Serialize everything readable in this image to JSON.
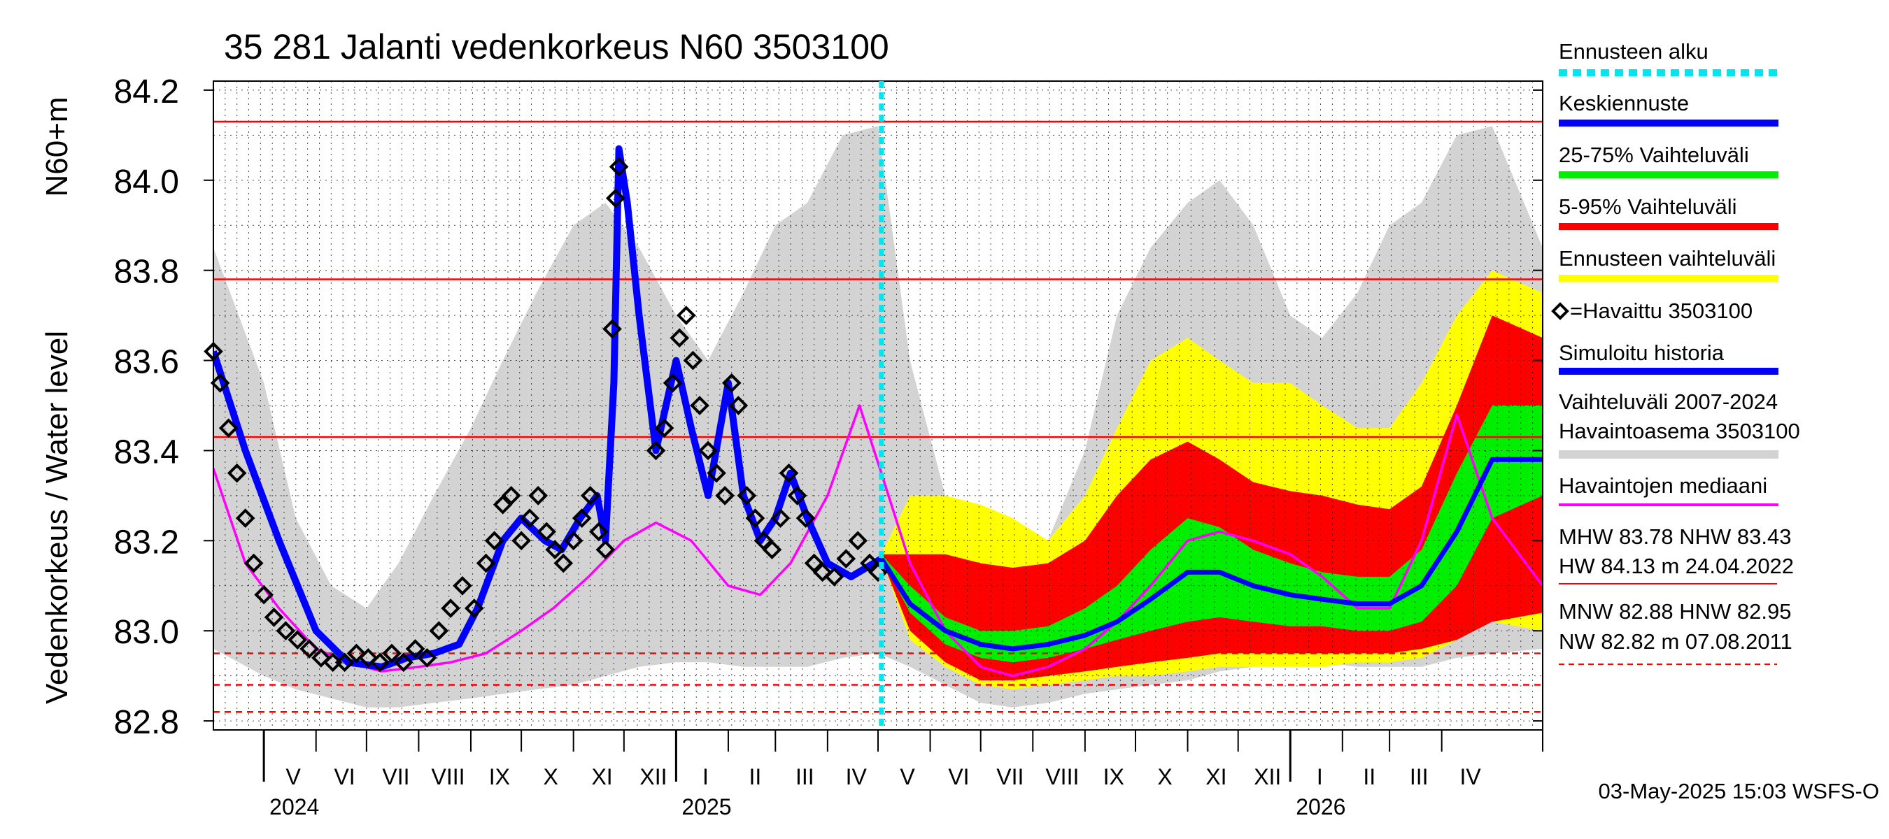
{
  "chart_data": {
    "type": "line",
    "title": "35 281 Jalanti vedenkorkeus N60 3503100",
    "ylabel_main": "Vedenkorkeus / Water level",
    "ylabel_unit": "N60+m",
    "ylim": [
      82.78,
      84.22
    ],
    "yticks": [
      "82.8",
      "83.0",
      "83.2",
      "83.4",
      "83.6",
      "83.8",
      "84.0",
      "84.2"
    ],
    "yticks_values": [
      82.8,
      83.0,
      83.2,
      83.4,
      83.6,
      83.8,
      84.0,
      84.2
    ],
    "x_range": [
      "2024-04-01",
      "2026-05-31"
    ],
    "forecast_start": "2025-05-03",
    "months": [
      {
        "label": "V",
        "start": "2024-05-01",
        "end": "2024-05-31"
      },
      {
        "label": "VI",
        "start": "2024-06-01",
        "end": "2024-06-30"
      },
      {
        "label": "VII",
        "start": "2024-07-01",
        "end": "2024-07-31"
      },
      {
        "label": "VIII",
        "start": "2024-08-01",
        "end": "2024-08-31"
      },
      {
        "label": "IX",
        "start": "2024-09-01",
        "end": "2024-09-30"
      },
      {
        "label": "X",
        "start": "2024-10-01",
        "end": "2024-10-31"
      },
      {
        "label": "XI",
        "start": "2024-11-01",
        "end": "2024-11-30"
      },
      {
        "label": "XII",
        "start": "2024-12-01",
        "end": "2024-12-31"
      },
      {
        "label": "I",
        "start": "2025-01-01",
        "end": "2025-01-31"
      },
      {
        "label": "II",
        "start": "2025-02-01",
        "end": "2025-02-28"
      },
      {
        "label": "III",
        "start": "2025-03-01",
        "end": "2025-03-31"
      },
      {
        "label": "IV",
        "start": "2025-04-01",
        "end": "2025-04-30"
      },
      {
        "label": "V",
        "start": "2025-05-01",
        "end": "2025-05-31"
      },
      {
        "label": "VI",
        "start": "2025-06-01",
        "end": "2025-06-30"
      },
      {
        "label": "VII",
        "start": "2025-07-01",
        "end": "2025-07-31"
      },
      {
        "label": "VIII",
        "start": "2025-08-01",
        "end": "2025-08-31"
      },
      {
        "label": "IX",
        "start": "2025-09-01",
        "end": "2025-09-30"
      },
      {
        "label": "X",
        "start": "2025-10-01",
        "end": "2025-10-31"
      },
      {
        "label": "XI",
        "start": "2025-11-01",
        "end": "2025-11-30"
      },
      {
        "label": "XII",
        "start": "2025-12-01",
        "end": "2025-12-31"
      },
      {
        "label": "I",
        "start": "2026-01-01",
        "end": "2026-01-31"
      },
      {
        "label": "II",
        "start": "2026-02-01",
        "end": "2026-02-28"
      },
      {
        "label": "III",
        "start": "2026-03-01",
        "end": "2026-03-31"
      },
      {
        "label": "IV",
        "start": "2026-04-01",
        "end": "2026-04-30"
      }
    ],
    "years": [
      {
        "label": "2024",
        "date": "2024-05-01"
      },
      {
        "label": "2025",
        "date": "2025-01-01"
      },
      {
        "label": "2026",
        "date": "2026-01-01"
      }
    ],
    "reference_lines": [
      {
        "name": "HW",
        "value": 84.13,
        "style": "solid"
      },
      {
        "name": "MHW",
        "value": 83.78,
        "style": "solid"
      },
      {
        "name": "NHW",
        "value": 83.43,
        "style": "solid"
      },
      {
        "name": "HNW",
        "value": 82.95,
        "style": "dashed"
      },
      {
        "name": "MNW",
        "value": 82.88,
        "style": "dashed"
      },
      {
        "name": "NW",
        "value": 82.82,
        "style": "dashed"
      }
    ],
    "series": [
      {
        "name": "Vaihteluväli 2007-2024 Havaintoasema 3503100",
        "kind": "band",
        "color": "#d3d3d3",
        "x": [
          "2024-04-01",
          "2024-05-01",
          "2024-05-20",
          "2024-06-10",
          "2024-07-01",
          "2024-07-20",
          "2024-08-10",
          "2024-09-01",
          "2024-09-20",
          "2024-10-10",
          "2024-11-01",
          "2024-11-20",
          "2024-12-10",
          "2025-01-01",
          "2025-01-20",
          "2025-02-10",
          "2025-03-01",
          "2025-03-20",
          "2025-04-10",
          "2025-05-01",
          "2025-05-20",
          "2025-06-10",
          "2025-07-01",
          "2025-07-20",
          "2025-08-10",
          "2025-09-01",
          "2025-09-20",
          "2025-10-10",
          "2025-11-01",
          "2025-11-20",
          "2025-12-10",
          "2026-01-01",
          "2026-01-20",
          "2026-02-10",
          "2026-03-01",
          "2026-03-20",
          "2026-04-10",
          "2026-05-01",
          "2026-05-31"
        ],
        "low": [
          82.96,
          82.9,
          82.87,
          82.85,
          82.83,
          82.83,
          82.84,
          82.85,
          82.86,
          82.87,
          82.88,
          82.9,
          82.92,
          82.93,
          82.93,
          82.92,
          82.92,
          82.92,
          82.94,
          82.95,
          82.92,
          82.88,
          82.84,
          82.83,
          82.84,
          82.86,
          82.87,
          82.88,
          82.89,
          82.91,
          82.92,
          82.93,
          82.93,
          82.92,
          82.92,
          82.92,
          82.94,
          82.95,
          82.96
        ],
        "high": [
          83.85,
          83.55,
          83.25,
          83.1,
          83.05,
          83.15,
          83.3,
          83.45,
          83.6,
          83.75,
          83.9,
          83.95,
          83.85,
          83.7,
          83.6,
          83.75,
          83.9,
          83.95,
          84.1,
          84.12,
          83.6,
          83.3,
          83.1,
          83.08,
          83.2,
          83.4,
          83.7,
          83.85,
          83.95,
          84.0,
          83.9,
          83.7,
          83.65,
          83.75,
          83.9,
          83.95,
          84.1,
          84.12,
          83.85
        ]
      },
      {
        "name": "Ennusteen vaihteluväli",
        "kind": "band",
        "color": "#ffff00",
        "x": [
          "2025-05-03",
          "2025-05-20",
          "2025-06-10",
          "2025-07-01",
          "2025-07-20",
          "2025-08-10",
          "2025-09-01",
          "2025-09-20",
          "2025-10-10",
          "2025-11-01",
          "2025-11-20",
          "2025-12-10",
          "2026-01-01",
          "2026-01-20",
          "2026-02-10",
          "2026-03-01",
          "2026-03-20",
          "2026-04-10",
          "2026-05-01",
          "2026-05-31"
        ],
        "low": [
          83.16,
          82.98,
          82.92,
          82.88,
          82.87,
          82.88,
          82.89,
          82.9,
          82.9,
          82.91,
          82.92,
          82.92,
          82.92,
          82.92,
          82.93,
          82.93,
          82.94,
          82.98,
          83.02,
          83.0
        ],
        "high": [
          83.17,
          83.3,
          83.3,
          83.28,
          83.25,
          83.2,
          83.3,
          83.45,
          83.6,
          83.65,
          83.6,
          83.55,
          83.55,
          83.5,
          83.45,
          83.45,
          83.55,
          83.7,
          83.8,
          83.75
        ]
      },
      {
        "name": "5-95% Vaihteluväli",
        "kind": "band",
        "color": "#ff0000",
        "x": [
          "2025-05-03",
          "2025-05-20",
          "2025-06-10",
          "2025-07-01",
          "2025-07-20",
          "2025-08-10",
          "2025-09-01",
          "2025-09-20",
          "2025-10-10",
          "2025-11-01",
          "2025-11-20",
          "2025-12-10",
          "2026-01-01",
          "2026-01-20",
          "2026-02-10",
          "2026-03-01",
          "2026-03-20",
          "2026-04-10",
          "2026-05-01",
          "2026-05-31"
        ],
        "low": [
          83.16,
          83.0,
          82.93,
          82.89,
          82.89,
          82.9,
          82.91,
          82.92,
          82.93,
          82.94,
          82.95,
          82.95,
          82.95,
          82.95,
          82.95,
          82.95,
          82.96,
          82.98,
          83.02,
          83.04
        ],
        "high": [
          83.17,
          83.17,
          83.17,
          83.15,
          83.14,
          83.15,
          83.2,
          83.3,
          83.38,
          83.42,
          83.38,
          83.33,
          83.31,
          83.3,
          83.28,
          83.27,
          83.32,
          83.5,
          83.7,
          83.65
        ]
      },
      {
        "name": "25-75% Vaihteluväli",
        "kind": "band",
        "color": "#00ee00",
        "x": [
          "2025-05-03",
          "2025-05-20",
          "2025-06-10",
          "2025-07-01",
          "2025-07-20",
          "2025-08-10",
          "2025-09-01",
          "2025-09-20",
          "2025-10-10",
          "2025-11-01",
          "2025-11-20",
          "2025-12-10",
          "2026-01-01",
          "2026-01-20",
          "2026-02-10",
          "2026-03-01",
          "2026-03-20",
          "2026-04-10",
          "2026-05-01",
          "2026-05-31"
        ],
        "low": [
          83.16,
          83.04,
          82.97,
          82.94,
          82.93,
          82.94,
          82.96,
          82.98,
          83.0,
          83.02,
          83.03,
          83.02,
          83.01,
          83.01,
          83.0,
          83.0,
          83.02,
          83.1,
          83.25,
          83.3
        ],
        "high": [
          83.17,
          83.1,
          83.03,
          83.0,
          83.0,
          83.01,
          83.05,
          83.1,
          83.18,
          83.25,
          83.23,
          83.18,
          83.15,
          83.13,
          83.12,
          83.12,
          83.18,
          83.35,
          83.5,
          83.5
        ]
      },
      {
        "name": "Keskiennuste",
        "kind": "line",
        "color": "#0000ff",
        "x": [
          "2025-05-03",
          "2025-05-20",
          "2025-06-10",
          "2025-07-01",
          "2025-07-20",
          "2025-08-10",
          "2025-09-01",
          "2025-09-20",
          "2025-10-10",
          "2025-11-01",
          "2025-11-20",
          "2025-12-10",
          "2026-01-01",
          "2026-01-20",
          "2026-02-10",
          "2026-03-01",
          "2026-03-20",
          "2026-04-10",
          "2026-05-01",
          "2026-05-31"
        ],
        "y": [
          83.16,
          83.06,
          83.0,
          82.97,
          82.96,
          82.97,
          82.99,
          83.02,
          83.07,
          83.13,
          83.13,
          83.1,
          83.08,
          83.07,
          83.06,
          83.06,
          83.1,
          83.22,
          83.38,
          83.38
        ]
      },
      {
        "name": "Havaintojen mediaani",
        "kind": "line",
        "color": "#ff00ff",
        "x": [
          "2024-04-01",
          "2024-04-20",
          "2024-05-10",
          "2024-06-01",
          "2024-06-20",
          "2024-07-10",
          "2024-08-01",
          "2024-08-20",
          "2024-09-10",
          "2024-10-01",
          "2024-10-20",
          "2024-11-10",
          "2024-12-01",
          "2024-12-20",
          "2025-01-10",
          "2025-02-01",
          "2025-02-20",
          "2025-03-10",
          "2025-04-01",
          "2025-04-20",
          "2025-05-03",
          "2025-05-20",
          "2025-06-10",
          "2025-07-01",
          "2025-07-20",
          "2025-08-10",
          "2025-09-01",
          "2025-09-20",
          "2025-10-10",
          "2025-11-01",
          "2025-11-20",
          "2025-12-10",
          "2026-01-01",
          "2026-01-20",
          "2026-02-10",
          "2026-03-01",
          "2026-03-20",
          "2026-04-10",
          "2026-05-01",
          "2026-05-31"
        ],
        "y": [
          83.36,
          83.15,
          83.05,
          82.96,
          82.93,
          82.91,
          82.92,
          82.93,
          82.95,
          83.0,
          83.05,
          83.12,
          83.2,
          83.24,
          83.2,
          83.1,
          83.08,
          83.15,
          83.3,
          83.5,
          83.35,
          83.15,
          83.0,
          82.92,
          82.9,
          82.92,
          82.96,
          83.02,
          83.1,
          83.2,
          83.22,
          83.2,
          83.17,
          83.12,
          83.05,
          83.05,
          83.2,
          83.48,
          83.25,
          83.1
        ]
      },
      {
        "name": "Simuloitu historia",
        "kind": "line",
        "color": "#0000ff",
        "x": [
          "2024-04-01",
          "2024-04-20",
          "2024-05-10",
          "2024-06-01",
          "2024-06-20",
          "2024-07-10",
          "2024-07-25",
          "2024-08-10",
          "2024-08-25",
          "2024-09-05",
          "2024-09-20",
          "2024-10-01",
          "2024-10-15",
          "2024-10-25",
          "2024-11-05",
          "2024-11-15",
          "2024-11-20",
          "2024-11-25",
          "2024-11-28",
          "2024-12-03",
          "2024-12-10",
          "2024-12-20",
          "2025-01-01",
          "2025-01-10",
          "2025-01-20",
          "2025-02-01",
          "2025-02-10",
          "2025-02-20",
          "2025-03-01",
          "2025-03-10",
          "2025-03-20",
          "2025-04-01",
          "2025-04-15",
          "2025-05-03"
        ],
        "y": [
          83.62,
          83.4,
          83.2,
          83.0,
          82.93,
          82.92,
          82.94,
          82.95,
          82.97,
          83.05,
          83.2,
          83.25,
          83.2,
          83.18,
          83.25,
          83.3,
          83.2,
          83.55,
          84.07,
          83.95,
          83.7,
          83.4,
          83.6,
          83.45,
          83.3,
          83.55,
          83.3,
          83.2,
          83.25,
          83.35,
          83.25,
          83.15,
          83.12,
          83.16
        ]
      },
      {
        "name": "=Havaittu 3503100",
        "kind": "markers",
        "color": "#000000",
        "x": [
          "2024-04-01",
          "2024-04-05",
          "2024-04-10",
          "2024-04-15",
          "2024-04-20",
          "2024-04-25",
          "2024-05-01",
          "2024-05-07",
          "2024-05-14",
          "2024-05-21",
          "2024-05-28",
          "2024-06-04",
          "2024-06-11",
          "2024-06-18",
          "2024-06-25",
          "2024-07-02",
          "2024-07-09",
          "2024-07-16",
          "2024-07-23",
          "2024-07-30",
          "2024-08-06",
          "2024-08-13",
          "2024-08-20",
          "2024-08-27",
          "2024-09-03",
          "2024-09-10",
          "2024-09-15",
          "2024-09-20",
          "2024-09-25",
          "2024-10-01",
          "2024-10-06",
          "2024-10-11",
          "2024-10-16",
          "2024-10-21",
          "2024-10-26",
          "2024-11-01",
          "2024-11-06",
          "2024-11-11",
          "2024-11-16",
          "2024-11-20",
          "2024-11-24",
          "2024-11-26",
          "2024-11-28",
          "2024-12-20",
          "2024-12-25",
          "2024-12-30",
          "2025-01-03",
          "2025-01-07",
          "2025-01-11",
          "2025-01-15",
          "2025-01-20",
          "2025-01-25",
          "2025-01-30",
          "2025-02-03",
          "2025-02-07",
          "2025-02-12",
          "2025-02-17",
          "2025-02-22",
          "2025-02-27",
          "2025-03-04",
          "2025-03-09",
          "2025-03-14",
          "2025-03-19",
          "2025-03-24",
          "2025-03-29",
          "2025-04-05",
          "2025-04-12",
          "2025-04-19",
          "2025-04-26",
          "2025-05-01"
        ],
        "y": [
          83.62,
          83.55,
          83.45,
          83.35,
          83.25,
          83.15,
          83.08,
          83.03,
          83.0,
          82.98,
          82.96,
          82.94,
          82.93,
          82.93,
          82.95,
          82.94,
          82.93,
          82.95,
          82.93,
          82.96,
          82.94,
          83.0,
          83.05,
          83.1,
          83.05,
          83.15,
          83.2,
          83.28,
          83.3,
          83.2,
          83.25,
          83.3,
          83.22,
          83.18,
          83.15,
          83.2,
          83.25,
          83.3,
          83.22,
          83.18,
          83.67,
          83.96,
          84.03,
          83.4,
          83.45,
          83.55,
          83.65,
          83.7,
          83.6,
          83.5,
          83.4,
          83.35,
          83.3,
          83.55,
          83.5,
          83.3,
          83.25,
          83.2,
          83.18,
          83.25,
          83.35,
          83.3,
          83.25,
          83.15,
          83.13,
          83.12,
          83.16,
          83.2,
          83.15,
          83.13
        ]
      }
    ],
    "legend": [
      {
        "label": "Ennusteen alku",
        "color": "#00e5ee",
        "style": "dotted"
      },
      {
        "label": "Keskiennuste",
        "color": "#0000ff",
        "style": "solid"
      },
      {
        "label": "25-75% Vaihteluväli",
        "color": "#00ee00",
        "style": "solid"
      },
      {
        "label": "5-95% Vaihteluväli",
        "color": "#ff0000",
        "style": "solid"
      },
      {
        "label": "Ennusteen vaihteluväli",
        "color": "#ffff00",
        "style": "solid"
      },
      {
        "label": "=Havaittu 3503100",
        "color": "#000000",
        "style": "marker"
      },
      {
        "label": "Simuloitu historia",
        "color": "#0000ff",
        "style": "solid"
      },
      {
        "label": "Vaihteluväli 2007-2024",
        "label2": " Havaintoasema 3503100",
        "color": "#d3d3d3",
        "style": "solid"
      },
      {
        "label": "Havaintojen mediaani",
        "color": "#ff00ff",
        "style": "thin"
      }
    ],
    "stats": {
      "line1": "MHW  83.78 NHW  83.43",
      "line2": "HW  84.13 m 24.04.2022",
      "line3": "MNW  82.88 HNW  82.95",
      "line4": "NW  82.82 m 07.08.2011"
    },
    "footer": "03-May-2025 15:03 WSFS-O"
  }
}
